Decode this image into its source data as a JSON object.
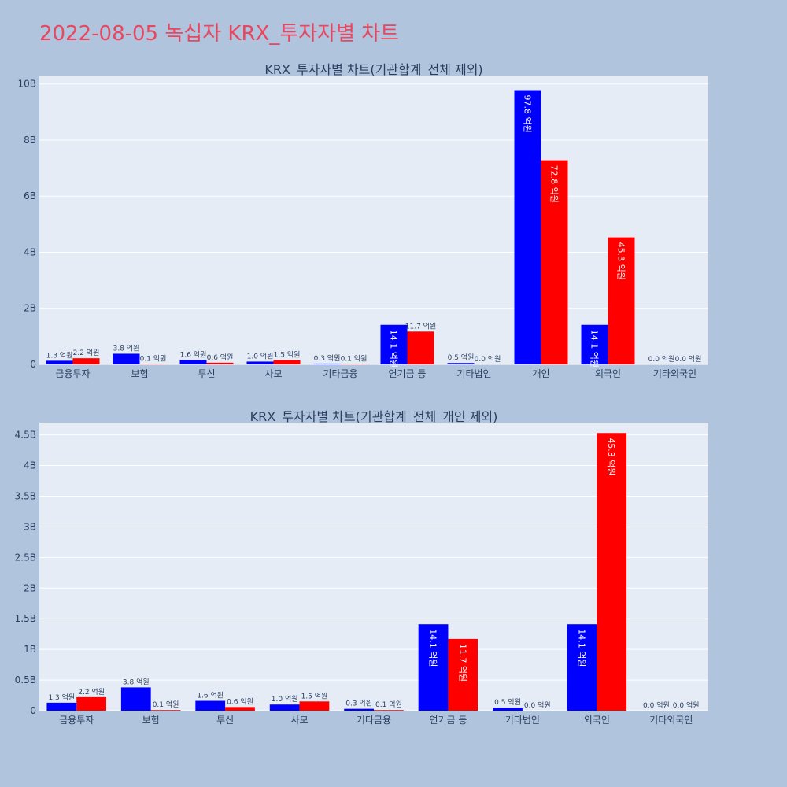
{
  "page_title": "2022-08-05 녹십자 KRX_투자자별 차트",
  "colors": {
    "title": "#e8475f",
    "series_a": "#0000ff",
    "series_b": "#ff0000",
    "plot_bg": "#e5ecf6",
    "page_bg": "#b0c4de"
  },
  "chart_data": [
    {
      "type": "bar",
      "title": "KRX_투자자별 차트(기관합계_전체 제외)",
      "categories": [
        "금융투자",
        "보험",
        "투신",
        "사모",
        "기타금융",
        "연기금 등",
        "기타법인",
        "개인",
        "외국인",
        "기타외국인"
      ],
      "series": [
        {
          "values": [
            130000000,
            380000000,
            160000000,
            100000000,
            30000000,
            1410000000,
            50000000,
            9780000000,
            1410000000,
            0
          ],
          "labels": [
            "1.3 억원",
            "3.8 억원",
            "1.6 억원",
            "1.0 억원",
            "0.3 억원",
            "14.1 억원",
            "0.5 억원",
            "97.8 억원",
            "14.1 억원",
            "0.0 억원"
          ]
        },
        {
          "values": [
            220000000,
            10000000,
            60000000,
            150000000,
            10000000,
            1170000000,
            0,
            7280000000,
            4530000000,
            0
          ],
          "labels": [
            "2.2 억원",
            "0.1 억원",
            "0.6 억원",
            "1.5 억원",
            "0.1 억원",
            "11.7 억원",
            "0.0 억원",
            "72.8 억원",
            "45.3 억원",
            "0.0 억원"
          ]
        }
      ],
      "yticks": [
        0,
        2000000000,
        4000000000,
        6000000000,
        8000000000,
        10000000000
      ],
      "ytick_labels": [
        "0",
        "2B",
        "4B",
        "6B",
        "8B",
        "10B"
      ],
      "ylim": [
        0,
        10300000000
      ],
      "grid": true
    },
    {
      "type": "bar",
      "title": "KRX_투자자별 차트(기관합계_전체_개인 제외)",
      "categories": [
        "금융투자",
        "보험",
        "투신",
        "사모",
        "기타금융",
        "연기금 등",
        "기타법인",
        "외국인",
        "기타외국인"
      ],
      "series": [
        {
          "values": [
            130000000,
            380000000,
            160000000,
            100000000,
            30000000,
            1410000000,
            50000000,
            1410000000,
            0
          ],
          "labels": [
            "1.3 억원",
            "3.8 억원",
            "1.6 억원",
            "1.0 억원",
            "0.3 억원",
            "14.1 억원",
            "0.5 억원",
            "14.1 억원",
            "0.0 억원"
          ]
        },
        {
          "values": [
            220000000,
            10000000,
            60000000,
            150000000,
            10000000,
            1170000000,
            0,
            4530000000,
            0
          ],
          "labels": [
            "2.2 억원",
            "0.1 억원",
            "0.6 억원",
            "1.5 억원",
            "0.1 억원",
            "11.7 억원",
            "0.0 억원",
            "45.3 억원",
            "0.0 억원"
          ]
        }
      ],
      "yticks": [
        0,
        500000000,
        1000000000,
        1500000000,
        2000000000,
        2500000000,
        3000000000,
        3500000000,
        4000000000,
        4500000000
      ],
      "ytick_labels": [
        "0",
        "0.5B",
        "1B",
        "1.5B",
        "2B",
        "2.5B",
        "3B",
        "3.5B",
        "4B",
        "4.5B"
      ],
      "ylim": [
        0,
        4700000000
      ],
      "grid": true
    }
  ]
}
